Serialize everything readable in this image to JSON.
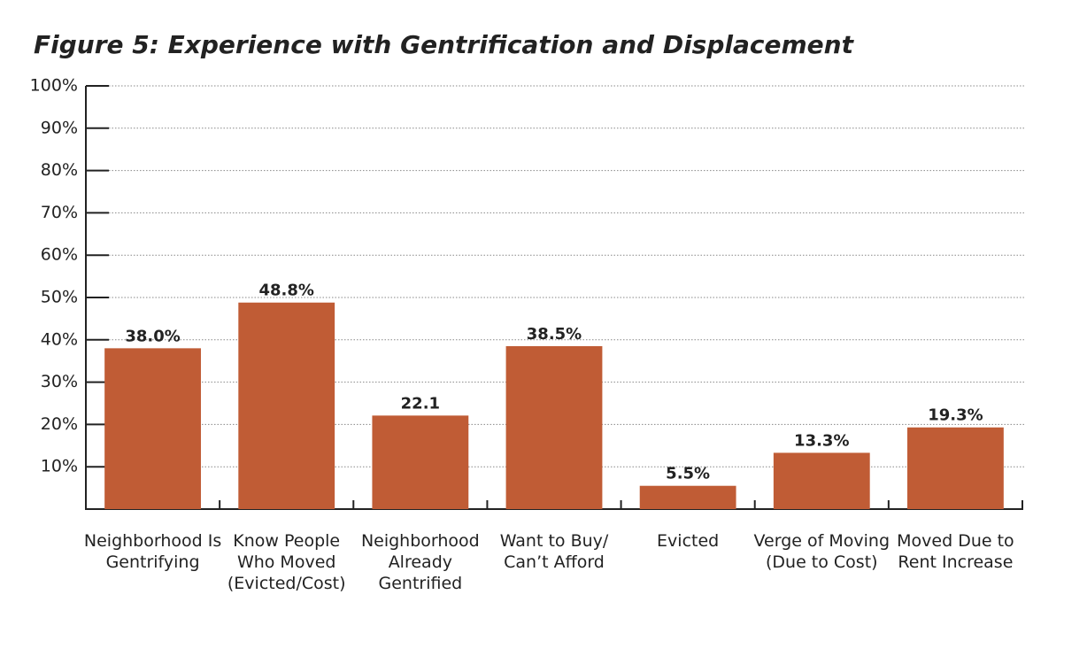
{
  "chart_data": {
    "type": "bar",
    "title": "Figure 5: Experience with Gentrification and Displacement",
    "categories": [
      "Neighborhood Is\nGentrifying",
      "Know People\nWho Moved\n(Evicted/Cost)",
      "Neighborhood\nAlready\nGentrified",
      "Want to Buy/\nCan’t Afford",
      "Evicted",
      "Verge of Moving\n(Due to Cost)",
      "Moved Due to\nRent Increase"
    ],
    "values": [
      38.0,
      48.8,
      22.1,
      38.5,
      5.5,
      13.3,
      19.3
    ],
    "value_labels": [
      "38.0%",
      "48.8%",
      "22.1",
      "38.5%",
      "5.5%",
      "13.3%",
      "19.3%"
    ],
    "color": "#c05c35",
    "ylim": [
      0,
      100
    ],
    "yticks": [
      {
        "value": 10,
        "label": "10%"
      },
      {
        "value": 20,
        "label": "20%"
      },
      {
        "value": 30,
        "label": "30%"
      },
      {
        "value": 40,
        "label": "40%"
      },
      {
        "value": 50,
        "label": "50%"
      },
      {
        "value": 60,
        "label": "60%"
      },
      {
        "value": 70,
        "label": "70%"
      },
      {
        "value": 80,
        "label": "80%"
      },
      {
        "value": 90,
        "label": "90%"
      },
      {
        "value": 100,
        "label": "100%"
      }
    ],
    "grid": true
  }
}
